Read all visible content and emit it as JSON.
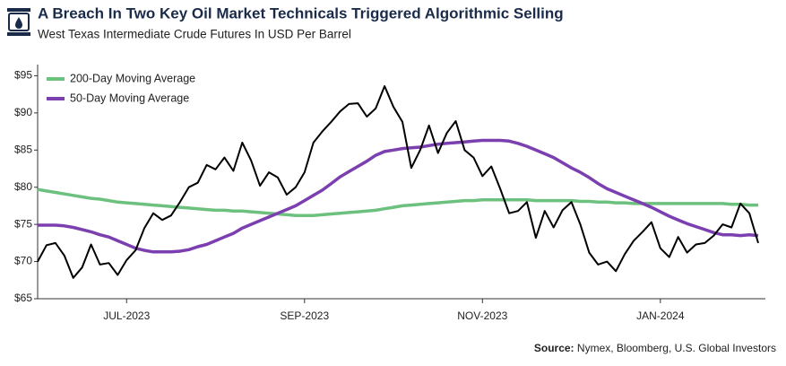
{
  "chart_data": {
    "type": "line",
    "title": "A Breach In Two Key Oil Market Technicals Triggered Algorithmic Selling",
    "subtitle": "West Texas Intermediate Crude Futures In USD Per Barrel",
    "source_label": "Source:",
    "source": "Nymex, Bloomberg, U.S. Global Investors",
    "categories": [
      null,
      null,
      null,
      null,
      null,
      null,
      null,
      null,
      null,
      null,
      "JUL-2023",
      null,
      null,
      null,
      null,
      null,
      null,
      null,
      null,
      null,
      null,
      null,
      null,
      null,
      null,
      null,
      null,
      null,
      null,
      null,
      "SEP-2023",
      null,
      null,
      null,
      null,
      null,
      null,
      null,
      null,
      null,
      null,
      null,
      null,
      null,
      null,
      null,
      null,
      null,
      null,
      null,
      "NOV-2023",
      null,
      null,
      null,
      null,
      null,
      null,
      null,
      null,
      null,
      null,
      null,
      null,
      null,
      null,
      null,
      null,
      null,
      null,
      null,
      "JAN-2024",
      null,
      null,
      null,
      null,
      null,
      null,
      null,
      null,
      null,
      null,
      null
    ],
    "series": [
      {
        "color": "#000000",
        "values": [
          70,
          72.2,
          72.5,
          70.8,
          67.8,
          69.2,
          72.3,
          69.6,
          69.8,
          68.2,
          70.2,
          71.5,
          74.5,
          76.5,
          75.6,
          76.2,
          78,
          80,
          80.6,
          83,
          82.4,
          84,
          82.2,
          86,
          83.6,
          80.2,
          82,
          81.3,
          79,
          80,
          82,
          86,
          87.5,
          88.8,
          90.2,
          91.2,
          91.3,
          89.5,
          90.6,
          93.6,
          90.8,
          88.8,
          82.6,
          85,
          88.3,
          84.6,
          87.3,
          88.9,
          85,
          84,
          81.5,
          82.8,
          79.8,
          76.5,
          76.8,
          78,
          73.2,
          76.8,
          74.6,
          76.9,
          78,
          75,
          71.2,
          69.6,
          70,
          68.7,
          71,
          72.8,
          74,
          75.3,
          71.8,
          70.6,
          73.3,
          71.2,
          72.3,
          72.5,
          73.5,
          75,
          74.6,
          77.8,
          76.5,
          72.5
        ]
      },
      {
        "name": "200-Day Moving Average",
        "color": "#6cc17e",
        "values": [
          79.7,
          79.5,
          79.3,
          79.1,
          78.9,
          78.7,
          78.5,
          78.4,
          78.2,
          78.0,
          77.9,
          77.8,
          77.7,
          77.6,
          77.5,
          77.4,
          77.3,
          77.2,
          77.1,
          77.0,
          76.9,
          76.9,
          76.8,
          76.8,
          76.7,
          76.6,
          76.5,
          76.4,
          76.3,
          76.2,
          76.2,
          76.2,
          76.3,
          76.4,
          76.5,
          76.6,
          76.7,
          76.8,
          76.9,
          77.1,
          77.3,
          77.5,
          77.6,
          77.7,
          77.8,
          77.9,
          78.0,
          78.1,
          78.2,
          78.2,
          78.3,
          78.3,
          78.3,
          78.3,
          78.3,
          78.3,
          78.2,
          78.2,
          78.2,
          78.2,
          78.2,
          78.1,
          78.1,
          78.0,
          78.0,
          77.9,
          77.9,
          77.8,
          77.8,
          77.8,
          77.8,
          77.8,
          77.8,
          77.8,
          77.8,
          77.8,
          77.8,
          77.8,
          77.7,
          77.7,
          77.6,
          77.6
        ]
      },
      {
        "name": "50-Day Moving Average",
        "color": "#7b3fb0",
        "values": [
          74.9,
          74.9,
          74.9,
          74.8,
          74.6,
          74.3,
          74.0,
          73.6,
          73.3,
          72.8,
          72.3,
          71.8,
          71.5,
          71.3,
          71.3,
          71.3,
          71.4,
          71.6,
          72.0,
          72.3,
          72.8,
          73.3,
          73.8,
          74.5,
          75.0,
          75.5,
          76.0,
          76.5,
          77.0,
          77.5,
          78.2,
          78.9,
          79.6,
          80.5,
          81.4,
          82.1,
          82.8,
          83.5,
          84.3,
          84.8,
          85.0,
          85.2,
          85.3,
          85.4,
          85.6,
          85.8,
          85.9,
          86.0,
          86.1,
          86.2,
          86.3,
          86.3,
          86.3,
          86.2,
          85.9,
          85.5,
          85.0,
          84.5,
          84.0,
          83.3,
          82.6,
          82.0,
          81.3,
          80.5,
          79.8,
          79.3,
          78.8,
          78.3,
          77.8,
          77.3,
          76.7,
          76.1,
          75.6,
          75.1,
          74.7,
          74.3,
          73.9,
          73.6,
          73.6,
          73.5,
          73.6,
          73.5
        ]
      }
    ],
    "ylim": [
      65,
      96.5
    ],
    "yticks": [
      {
        "value": 65,
        "label": "$65"
      },
      {
        "value": 70,
        "label": "$70"
      },
      {
        "value": 75,
        "label": "$75"
      },
      {
        "value": 80,
        "label": "$80"
      },
      {
        "value": 85,
        "label": "$85"
      },
      {
        "value": 90,
        "label": "$90"
      },
      {
        "value": 95,
        "label": "$95"
      }
    ],
    "grid": false,
    "legend": "top-left"
  }
}
